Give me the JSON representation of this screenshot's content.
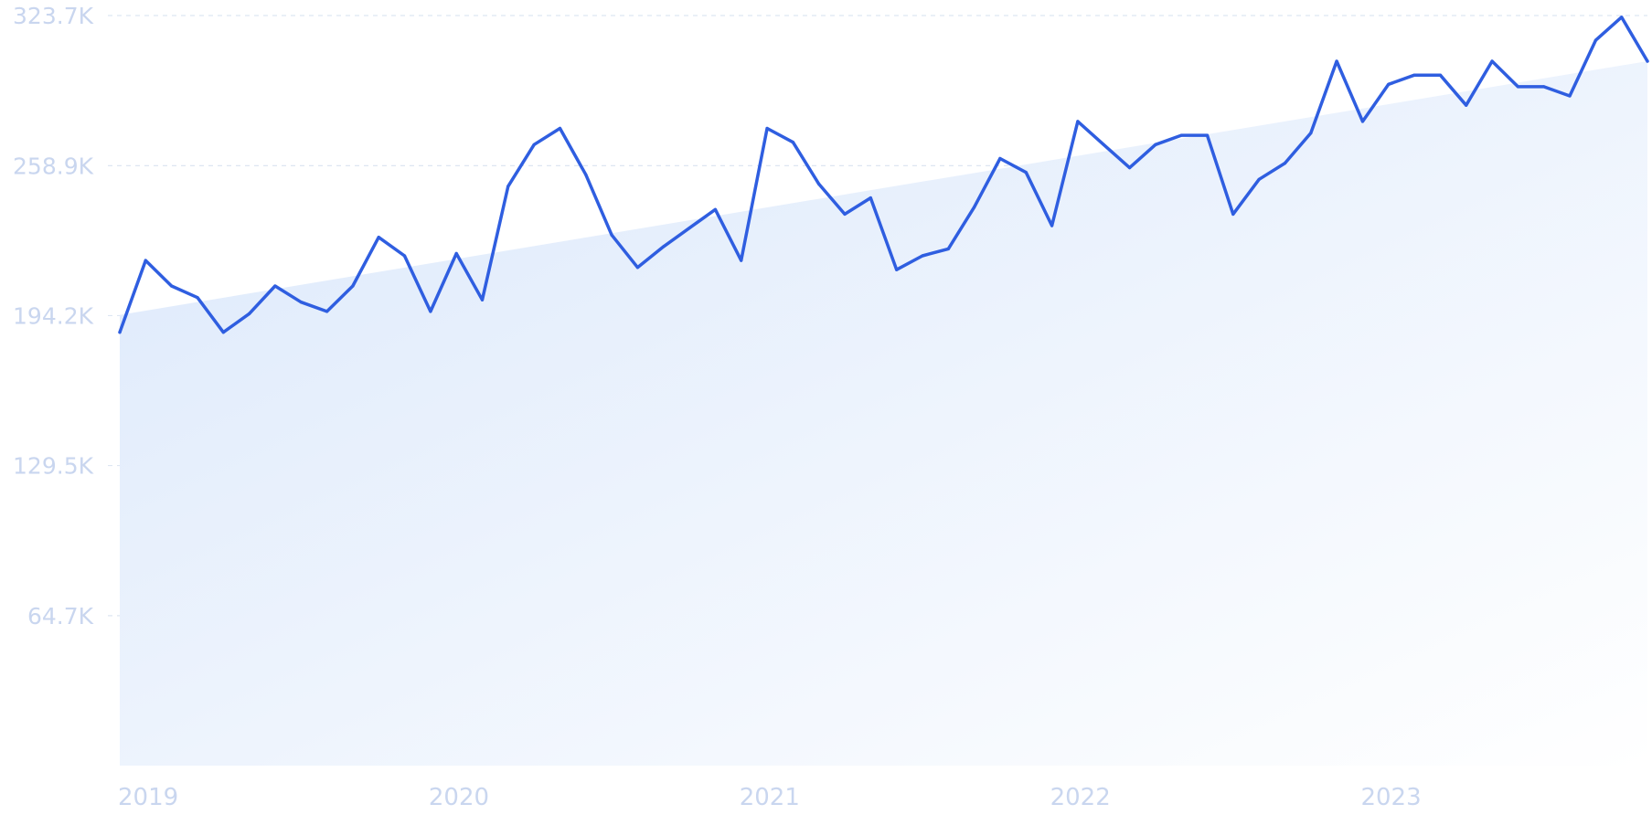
{
  "chart_data": {
    "type": "area",
    "title": "",
    "xlabel": "",
    "ylabel": "",
    "ylim": [
      0,
      323700
    ],
    "y_ticks": [
      {
        "value": 323700,
        "label": "323.7K"
      },
      {
        "value": 258900,
        "label": "258.9K"
      },
      {
        "value": 194200,
        "label": "194.2K"
      },
      {
        "value": 129500,
        "label": "129.5K"
      },
      {
        "value": 64700,
        "label": "64.7K"
      }
    ],
    "x_ticks": [
      {
        "x": "2019-01",
        "label": "2019"
      },
      {
        "x": "2020-01",
        "label": "2020"
      },
      {
        "x": "2021-01",
        "label": "2021"
      },
      {
        "x": "2022-01",
        "label": "2022"
      },
      {
        "x": "2023-01",
        "label": "2023"
      }
    ],
    "x": [
      "2019-01",
      "2019-02",
      "2019-03",
      "2019-04",
      "2019-05",
      "2019-06",
      "2019-07",
      "2019-08",
      "2019-09",
      "2019-10",
      "2019-11",
      "2019-12",
      "2020-01",
      "2020-02",
      "2020-03",
      "2020-04",
      "2020-05",
      "2020-06",
      "2020-07",
      "2020-08",
      "2020-09",
      "2020-10",
      "2020-11",
      "2020-12",
      "2021-01",
      "2021-02",
      "2021-03",
      "2021-04",
      "2021-05",
      "2021-06",
      "2021-07",
      "2021-08",
      "2021-09",
      "2021-10",
      "2021-11",
      "2021-12",
      "2022-01",
      "2022-02",
      "2022-03",
      "2022-04",
      "2022-05",
      "2022-06",
      "2022-07",
      "2022-08",
      "2022-09",
      "2022-10",
      "2022-11",
      "2022-12",
      "2023-01",
      "2023-02",
      "2023-03",
      "2023-04",
      "2023-05",
      "2023-06",
      "2023-07",
      "2023-08",
      "2023-09",
      "2023-10",
      "2023-11",
      "2023-12"
    ],
    "series": [
      {
        "values": [
          187000,
          218000,
          207000,
          202000,
          187000,
          195000,
          207000,
          200000,
          196000,
          207000,
          228000,
          220000,
          196000,
          221000,
          201000,
          250000,
          268000,
          275000,
          255000,
          229000,
          215000,
          224000,
          232000,
          240000,
          218000,
          275000,
          269000,
          251000,
          238000,
          245000,
          214000,
          220000,
          223000,
          241000,
          262000,
          256000,
          233000,
          278000,
          268000,
          258000,
          268000,
          272000,
          272000,
          238000,
          253000,
          260000,
          273000,
          304000,
          278000,
          294000,
          298000,
          298000,
          285000,
          304000,
          293000,
          293000,
          289000,
          313000,
          323000,
          304000
        ]
      }
    ],
    "trend": {
      "start": 194500,
      "end": 304000
    },
    "grid": true,
    "legend": "none",
    "colors": {
      "line": "#2f5ee0",
      "area_top": "#dbe8fb",
      "area_bottom": "#ffffff",
      "grid": "#dde6f2",
      "tick_label": "#c9d6ef"
    }
  }
}
